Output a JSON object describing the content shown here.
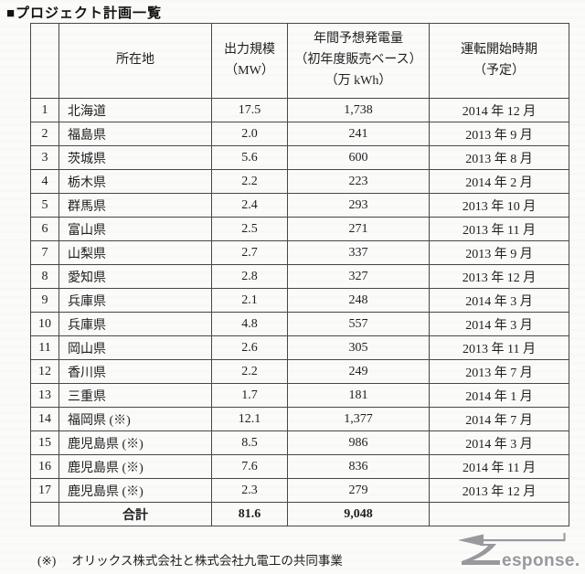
{
  "page": {
    "title": "■プロジェクト計画一覧"
  },
  "colors": {
    "logo_gray": "#98989d",
    "border": "#474747",
    "text": "#1e1e1e",
    "background": "#fbfbfa"
  },
  "table": {
    "columns": [
      {
        "key": "no",
        "label_lines": []
      },
      {
        "key": "location",
        "label_lines": [
          "所在地"
        ]
      },
      {
        "key": "mw",
        "label_lines": [
          "出力規模",
          "（MW）"
        ]
      },
      {
        "key": "kwh",
        "label_lines": [
          "年間予想発電量",
          "（初年度販売ベース）",
          "（万 kWh）"
        ]
      },
      {
        "key": "start",
        "label_lines": [
          "運転開始時期",
          "（予定）"
        ]
      }
    ],
    "rows": [
      {
        "no": "1",
        "location": "北海道",
        "mw": "17.5",
        "kwh": "1,738",
        "start": "2014 年 12 月"
      },
      {
        "no": "2",
        "location": "福島県",
        "mw": "2.0",
        "kwh": "241",
        "start": "2013 年 9 月"
      },
      {
        "no": "3",
        "location": "茨城県",
        "mw": "5.6",
        "kwh": "600",
        "start": "2013 年 8 月"
      },
      {
        "no": "4",
        "location": "栃木県",
        "mw": "2.2",
        "kwh": "223",
        "start": "2014 年 2 月"
      },
      {
        "no": "5",
        "location": "群馬県",
        "mw": "2.4",
        "kwh": "293",
        "start": "2013 年 10 月"
      },
      {
        "no": "6",
        "location": "富山県",
        "mw": "2.5",
        "kwh": "271",
        "start": "2013 年 11 月"
      },
      {
        "no": "7",
        "location": "山梨県",
        "mw": "2.7",
        "kwh": "337",
        "start": "2013 年 9 月"
      },
      {
        "no": "8",
        "location": "愛知県",
        "mw": "2.8",
        "kwh": "327",
        "start": "2013 年 12 月"
      },
      {
        "no": "9",
        "location": "兵庫県",
        "mw": "2.1",
        "kwh": "248",
        "start": "2014 年 3 月"
      },
      {
        "no": "10",
        "location": "兵庫県",
        "mw": "4.8",
        "kwh": "557",
        "start": "2014 年 3 月"
      },
      {
        "no": "11",
        "location": "岡山県",
        "mw": "2.6",
        "kwh": "305",
        "start": "2013 年 11 月"
      },
      {
        "no": "12",
        "location": "香川県",
        "mw": "2.2",
        "kwh": "249",
        "start": "2013 年 7 月"
      },
      {
        "no": "13",
        "location": "三重県",
        "mw": "1.7",
        "kwh": "181",
        "start": "2014 年 1 月"
      },
      {
        "no": "14",
        "location": "福岡県 (※)",
        "mw": "12.1",
        "kwh": "1,377",
        "start": "2014 年 7 月"
      },
      {
        "no": "15",
        "location": "鹿児島県 (※)",
        "mw": "8.5",
        "kwh": "986",
        "start": "2014 年 3 月"
      },
      {
        "no": "16",
        "location": "鹿児島県 (※)",
        "mw": "7.6",
        "kwh": "836",
        "start": "2014 年 11 月"
      },
      {
        "no": "17",
        "location": "鹿児島県 (※)",
        "mw": "2.3",
        "kwh": "279",
        "start": "2013 年 12 月"
      }
    ],
    "total_row": {
      "no": "",
      "location": "合計",
      "mw": "81.6",
      "kwh": "9,048",
      "start": ""
    }
  },
  "footnote": {
    "marker": "(※)",
    "text": "オリックス株式会社と株式会社九電工の共同事業"
  },
  "logo": {
    "name": "Response.",
    "wordmark": "esponse."
  }
}
